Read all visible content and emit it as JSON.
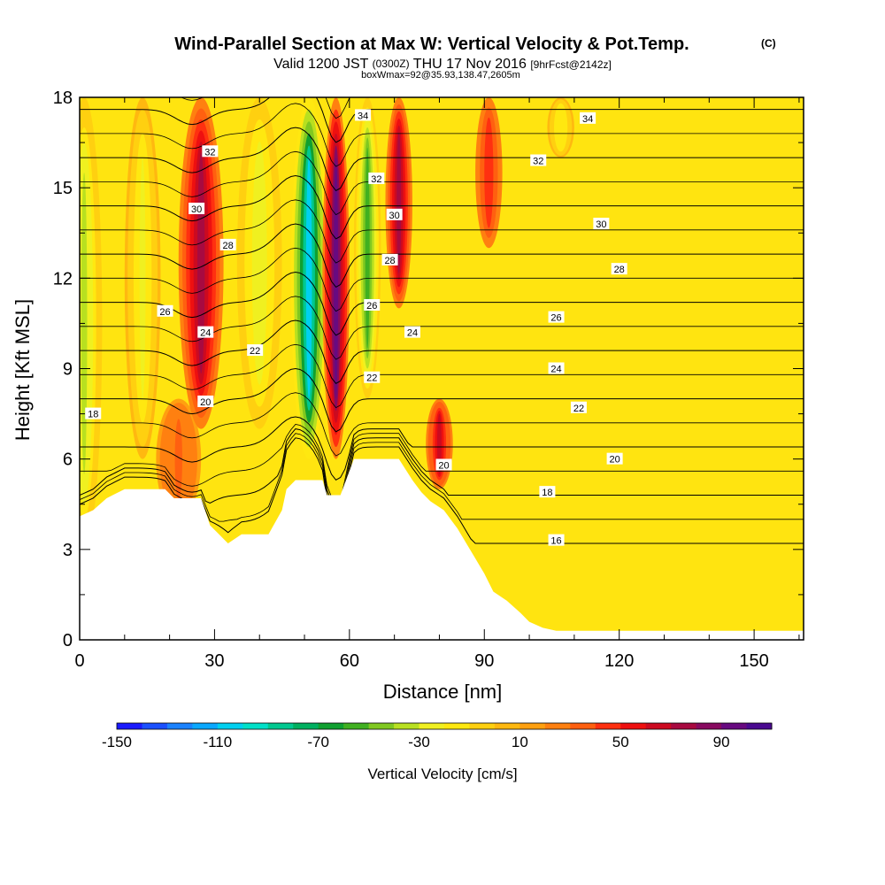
{
  "chart_data": {
    "type": "heatmap",
    "title": "Wind-Parallel Section at Max W: Vertical Velocity & Pot.Temp.",
    "title_unit": "(C)",
    "subtitle_main_a": "Valid 1200 JST",
    "subtitle_utc": "(0300Z)",
    "subtitle_main_b": "THU 17 Nov 2016",
    "subtitle_fcst": "[9hrFcst@2142z]",
    "subtitle2": "boxWmax=92@35.93,138.47,2605m",
    "xlabel": "Distance [nm]",
    "ylabel": "Height [Kft MSL]",
    "xlim": [
      0,
      161
    ],
    "ylim": [
      0,
      18
    ],
    "x_ticks": [
      0,
      30,
      60,
      90,
      120,
      150
    ],
    "y_ticks": [
      0,
      3,
      6,
      9,
      12,
      15,
      18
    ],
    "x_minor_step": 10,
    "y_minor_step": 1.5,
    "colorbar": {
      "label": "Vertical Velocity [cm/s]",
      "min": -150,
      "max": 110,
      "tick_labels": [
        -150,
        -110,
        -70,
        -30,
        10,
        50,
        90
      ],
      "colors": [
        "#1a1aff",
        "#1a50ff",
        "#1a82ff",
        "#0aa8ff",
        "#00d0f0",
        "#00e0c8",
        "#00c890",
        "#00b060",
        "#10a030",
        "#40b020",
        "#80c820",
        "#b8e020",
        "#f0f020",
        "#ffe810",
        "#ffd010",
        "#ffb810",
        "#ffa010",
        "#ff8010",
        "#ff6010",
        "#ff3010",
        "#ee1010",
        "#cc0a20",
        "#a80a40",
        "#880a60",
        "#680a80",
        "#4a0a90"
      ]
    },
    "w_features": [
      {
        "x": 1,
        "y_from": 3,
        "y_to": 18,
        "w": -35,
        "width": 4
      },
      {
        "x": 14,
        "y_from": 6,
        "y_to": 18,
        "w": -25,
        "width": 4
      },
      {
        "x": 22,
        "y_from": 4,
        "y_to": 8,
        "w": 30,
        "width": 5
      },
      {
        "x": 27,
        "y_from": 7,
        "y_to": 18,
        "w": 70,
        "width": 5
      },
      {
        "x": 40,
        "y_from": 7,
        "y_to": 18,
        "w": -30,
        "width": 5
      },
      {
        "x": 51,
        "y_from": 6,
        "y_to": 18,
        "w": -105,
        "width": 4
      },
      {
        "x": 57,
        "y_from": 6,
        "y_to": 18,
        "w": 95,
        "width": 3
      },
      {
        "x": 64,
        "y_from": 8,
        "y_to": 18,
        "w": -55,
        "width": 3
      },
      {
        "x": 71,
        "y_from": 11,
        "y_to": 18,
        "w": 70,
        "width": 3
      },
      {
        "x": 80,
        "y_from": 5,
        "y_to": 8,
        "w": 60,
        "width": 3
      },
      {
        "x": 91,
        "y_from": 13,
        "y_to": 18,
        "w": 45,
        "width": 3
      },
      {
        "x": 107,
        "y_from": 16,
        "y_to": 18,
        "w": -20,
        "width": 3
      }
    ],
    "terrain_kft": [
      [
        0,
        4.1
      ],
      [
        3,
        4.3
      ],
      [
        6,
        4.7
      ],
      [
        10,
        5.0
      ],
      [
        19,
        5.0
      ],
      [
        21,
        4.7
      ],
      [
        27,
        4.7
      ],
      [
        29,
        3.8
      ],
      [
        31,
        3.5
      ],
      [
        33,
        3.2
      ],
      [
        36,
        3.5
      ],
      [
        42,
        3.5
      ],
      [
        45,
        4.3
      ],
      [
        46,
        5.0
      ],
      [
        48,
        5.3
      ],
      [
        54,
        5.3
      ],
      [
        55,
        4.8
      ],
      [
        58,
        4.8
      ],
      [
        61,
        6.0
      ],
      [
        71,
        6.0
      ],
      [
        74,
        5.3
      ],
      [
        76,
        4.9
      ],
      [
        78,
        4.6
      ],
      [
        81,
        4.3
      ],
      [
        84,
        3.7
      ],
      [
        86,
        3.2
      ],
      [
        88,
        2.7
      ],
      [
        90,
        2.2
      ],
      [
        92,
        1.6
      ],
      [
        95,
        1.3
      ],
      [
        98,
        0.9
      ],
      [
        100,
        0.6
      ],
      [
        103,
        0.4
      ],
      [
        106,
        0.3
      ],
      [
        161,
        0.3
      ]
    ],
    "theta_contours": [
      16,
      18,
      20,
      22,
      24,
      26,
      28,
      30,
      32,
      34
    ],
    "theta_labels": [
      {
        "value": "18",
        "x": 3,
        "y": 7.5
      },
      {
        "value": "20",
        "x": 28,
        "y": 7.9
      },
      {
        "value": "20",
        "x": 81,
        "y": 5.8
      },
      {
        "value": "20",
        "x": 119,
        "y": 6.0
      },
      {
        "value": "22",
        "x": 39,
        "y": 9.6
      },
      {
        "value": "22",
        "x": 65,
        "y": 8.7
      },
      {
        "value": "22",
        "x": 111,
        "y": 7.7
      },
      {
        "value": "24",
        "x": 28,
        "y": 10.2
      },
      {
        "value": "24",
        "x": 74,
        "y": 10.2
      },
      {
        "value": "24",
        "x": 106,
        "y": 9.0
      },
      {
        "value": "26",
        "x": 19,
        "y": 10.9
      },
      {
        "value": "26",
        "x": 65,
        "y": 11.1
      },
      {
        "value": "26",
        "x": 106,
        "y": 10.7
      },
      {
        "value": "28",
        "x": 33,
        "y": 13.1
      },
      {
        "value": "28",
        "x": 69,
        "y": 12.6
      },
      {
        "value": "28",
        "x": 120,
        "y": 12.3
      },
      {
        "value": "30",
        "x": 26,
        "y": 14.3
      },
      {
        "value": "30",
        "x": 70,
        "y": 14.1
      },
      {
        "value": "30",
        "x": 116,
        "y": 13.8
      },
      {
        "value": "32",
        "x": 29,
        "y": 16.2
      },
      {
        "value": "32",
        "x": 66,
        "y": 15.3
      },
      {
        "value": "32",
        "x": 102,
        "y": 15.9
      },
      {
        "value": "34",
        "x": 63,
        "y": 17.4
      },
      {
        "value": "34",
        "x": 113,
        "y": 17.3
      },
      {
        "value": "16",
        "x": 106,
        "y": 3.3
      },
      {
        "value": "18",
        "x": 104,
        "y": 4.9
      }
    ]
  }
}
